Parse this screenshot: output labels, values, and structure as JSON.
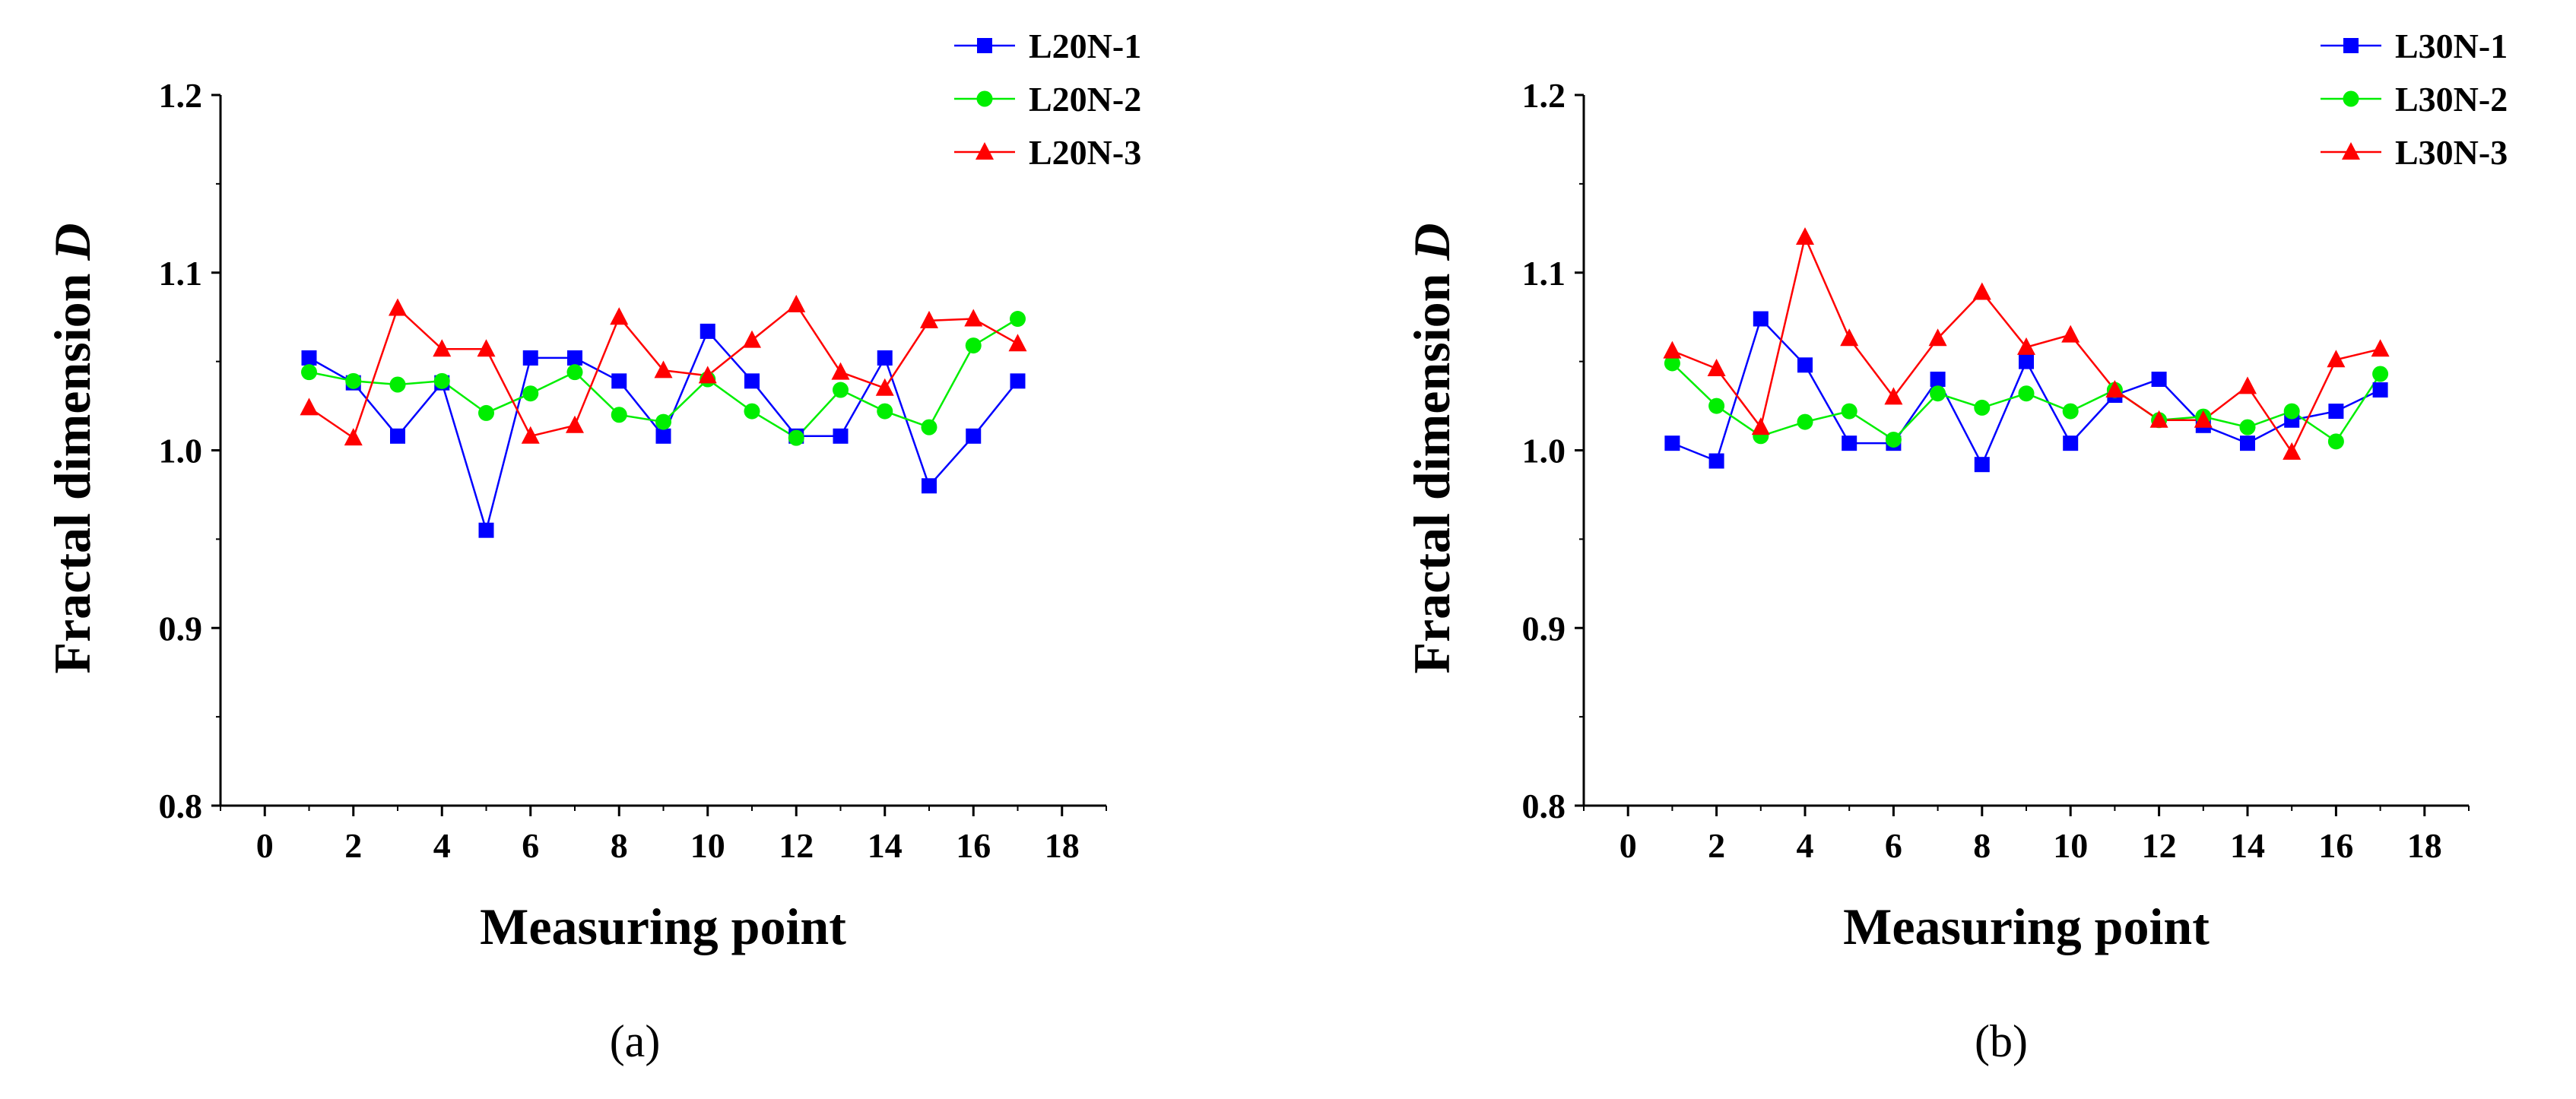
{
  "chart_data": [
    {
      "type": "line",
      "caption": "(a)",
      "xlabel": "Measuring point",
      "ylabel_prefix": "Fractal dimension ",
      "ylabel_var": "D",
      "xlim": [
        -1,
        19
      ],
      "ylim": [
        0.8,
        1.2
      ],
      "xticks": [
        0,
        2,
        4,
        6,
        8,
        10,
        12,
        14,
        16,
        18
      ],
      "yticks": [
        0.8,
        0.9,
        1.0,
        1.1,
        1.2
      ],
      "ytick_labels": [
        "0.8",
        "0.9",
        "1.0",
        "1.1",
        "1.2"
      ],
      "legend_position": "top-right",
      "series": [
        {
          "name": "L20N-1",
          "color": "#0000ff",
          "marker": "square",
          "x": [
            1,
            2,
            3,
            4,
            5,
            6,
            7,
            8,
            9,
            10,
            11,
            12,
            13,
            14,
            15,
            16,
            17
          ],
          "values": [
            1.052,
            1.038,
            1.008,
            1.038,
            0.955,
            1.052,
            1.052,
            1.039,
            1.008,
            1.067,
            1.039,
            1.008,
            1.008,
            1.052,
            0.98,
            1.008,
            1.039
          ]
        },
        {
          "name": "L20N-2",
          "color": "#00ee00",
          "marker": "circle",
          "x": [
            1,
            2,
            3,
            4,
            5,
            6,
            7,
            8,
            9,
            10,
            11,
            12,
            13,
            14,
            15,
            16,
            17
          ],
          "values": [
            1.044,
            1.039,
            1.037,
            1.039,
            1.021,
            1.032,
            1.044,
            1.02,
            1.016,
            1.04,
            1.022,
            1.007,
            1.034,
            1.022,
            1.013,
            1.059,
            1.074
          ]
        },
        {
          "name": "L20N-3",
          "color": "#ff0000",
          "marker": "triangle",
          "x": [
            1,
            2,
            3,
            4,
            5,
            6,
            7,
            8,
            9,
            10,
            11,
            12,
            13,
            14,
            15,
            16,
            17
          ],
          "values": [
            1.024,
            1.007,
            1.08,
            1.057,
            1.057,
            1.008,
            1.014,
            1.075,
            1.045,
            1.042,
            1.062,
            1.082,
            1.044,
            1.035,
            1.073,
            1.074,
            1.06
          ]
        }
      ]
    },
    {
      "type": "line",
      "caption": "(b)",
      "xlabel": "Measuring point",
      "ylabel_prefix": "Fractal dimension ",
      "ylabel_var": "D",
      "xlim": [
        -1,
        19
      ],
      "ylim": [
        0.8,
        1.2
      ],
      "xticks": [
        0,
        2,
        4,
        6,
        8,
        10,
        12,
        14,
        16,
        18
      ],
      "yticks": [
        0.8,
        0.9,
        1.0,
        1.1,
        1.2
      ],
      "ytick_labels": [
        "0.8",
        "0.9",
        "1.0",
        "1.1",
        "1.2"
      ],
      "legend_position": "top-right",
      "series": [
        {
          "name": "L30N-1",
          "color": "#0000ff",
          "marker": "square",
          "x": [
            1,
            2,
            3,
            4,
            5,
            6,
            7,
            8,
            9,
            10,
            11,
            12,
            13,
            14,
            15,
            16,
            17
          ],
          "values": [
            1.004,
            0.994,
            1.074,
            1.048,
            1.004,
            1.004,
            1.04,
            0.992,
            1.05,
            1.004,
            1.031,
            1.04,
            1.014,
            1.004,
            1.017,
            1.022,
            1.034
          ]
        },
        {
          "name": "L30N-2",
          "color": "#00ee00",
          "marker": "circle",
          "x": [
            1,
            2,
            3,
            4,
            5,
            6,
            7,
            8,
            9,
            10,
            11,
            12,
            13,
            14,
            15,
            16,
            17
          ],
          "values": [
            1.049,
            1.025,
            1.008,
            1.016,
            1.022,
            1.006,
            1.032,
            1.024,
            1.032,
            1.022,
            1.034,
            1.017,
            1.019,
            1.013,
            1.022,
            1.005,
            1.043
          ]
        },
        {
          "name": "L30N-3",
          "color": "#ff0000",
          "marker": "triangle",
          "x": [
            1,
            2,
            3,
            4,
            5,
            6,
            7,
            8,
            9,
            10,
            11,
            12,
            13,
            14,
            15,
            16,
            17
          ],
          "values": [
            1.056,
            1.046,
            1.013,
            1.12,
            1.063,
            1.03,
            1.063,
            1.089,
            1.058,
            1.065,
            1.034,
            1.017,
            1.017,
            1.036,
            0.999,
            1.051,
            1.057
          ]
        }
      ]
    }
  ]
}
